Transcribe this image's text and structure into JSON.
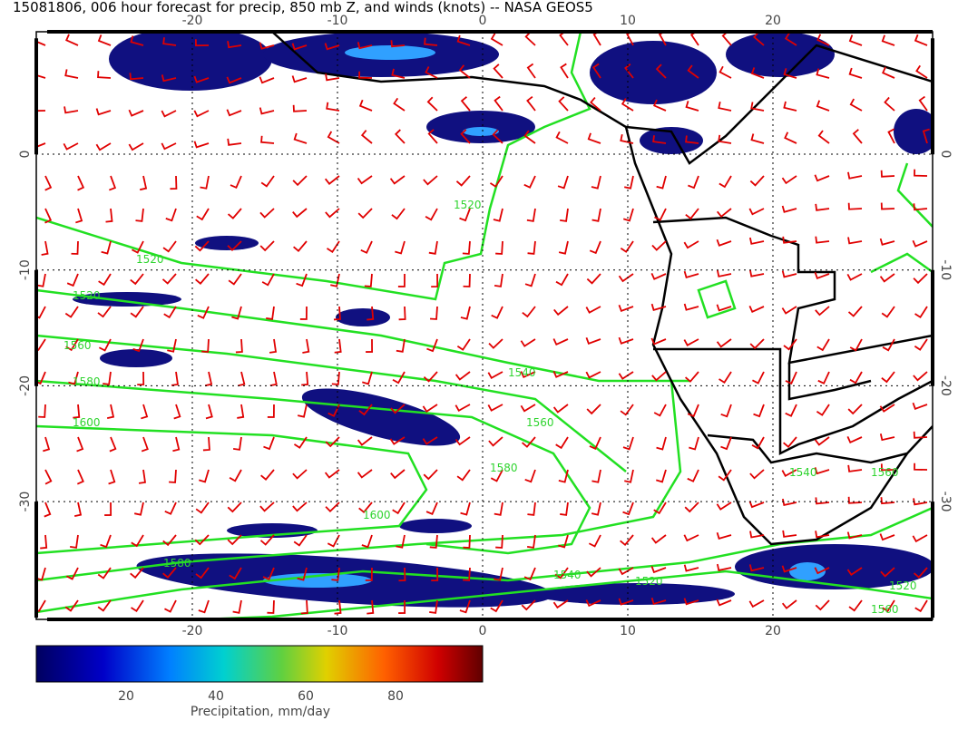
{
  "title": "15081806, 006 hour forecast for precip, 850 mb Z, and winds (knots) -- NASA GEOS5",
  "map": {
    "lon_ticks": [
      -20,
      -10,
      0,
      10,
      20
    ],
    "lat_ticks": [
      0,
      -10,
      -20,
      -30
    ],
    "contour_labels": [
      "1520",
      "1520",
      "1520",
      "1560",
      "1580",
      "1600",
      "1540",
      "1560",
      "1580",
      "1600",
      "1580",
      "1540",
      "1520",
      "1540",
      "1560",
      "1520",
      "1560"
    ]
  },
  "colorbar": {
    "ticks": [
      20,
      40,
      60,
      80
    ],
    "label": "Precipitation, mm/day"
  }
}
